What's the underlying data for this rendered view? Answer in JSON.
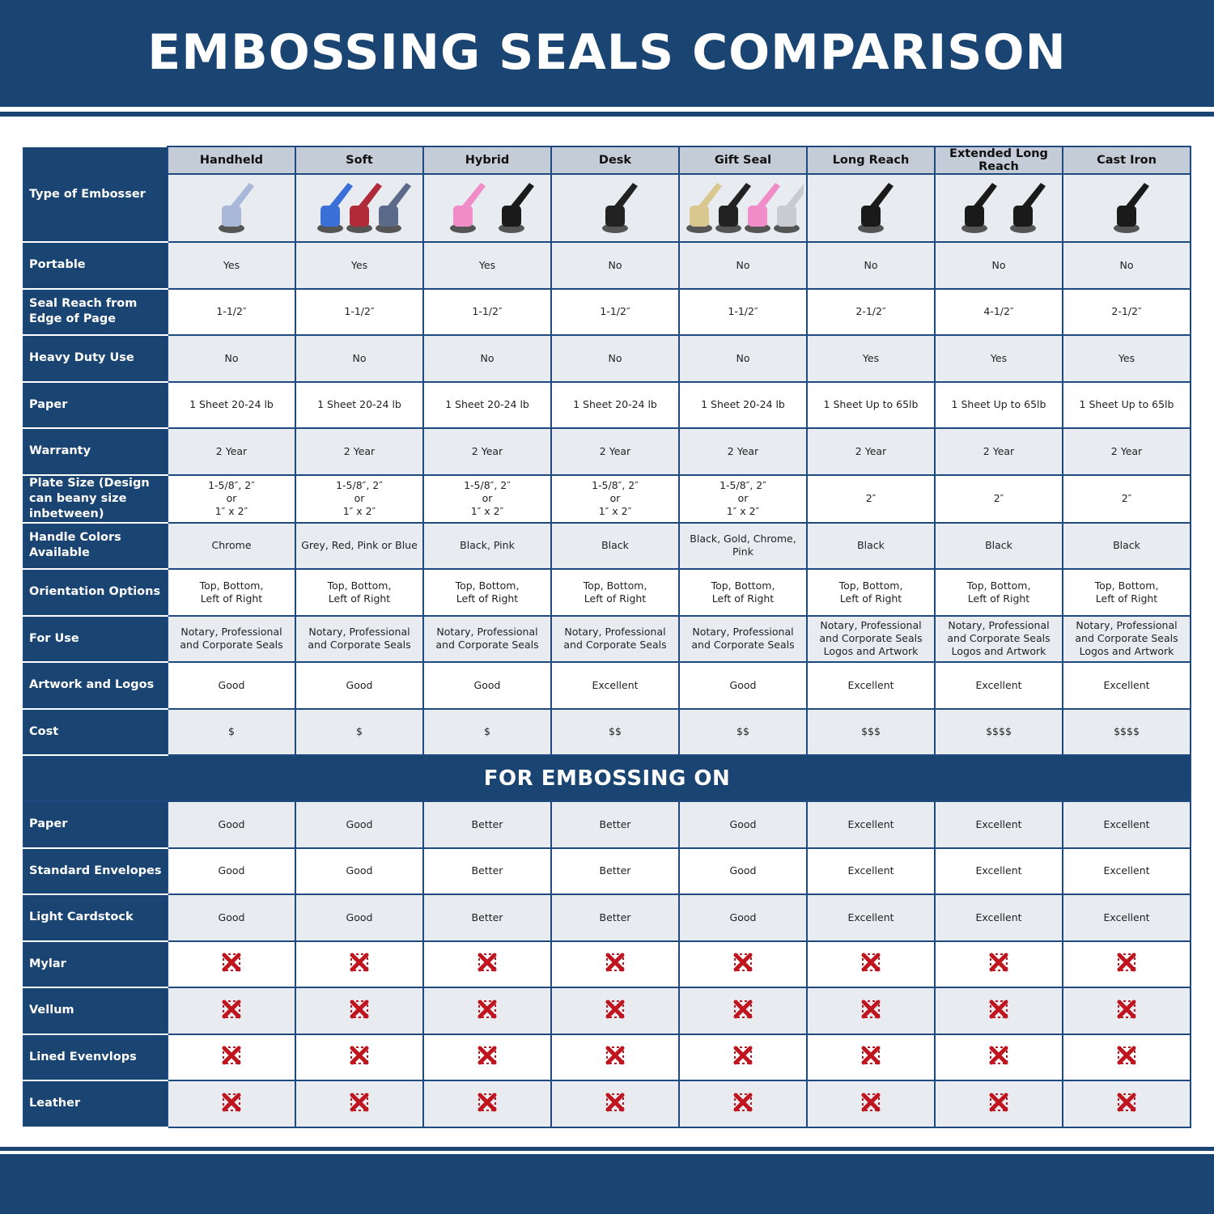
{
  "title": "EMBOSSING SEALS COMPARISON",
  "colors": {
    "brand": "#1a4472",
    "header_cell": "#c3ccd7",
    "alt_row": "#e8ecf0",
    "cross": "#c0141e"
  },
  "type_label": "Type of Embosser",
  "columns": [
    {
      "name": "Handheld",
      "image_colors": [
        "#a9b8d8"
      ]
    },
    {
      "name": "Soft",
      "image_colors": [
        "#3a6fd8",
        "#b02a3a",
        "#5a6a88"
      ]
    },
    {
      "name": "Hybrid",
      "image_colors": [
        "#f08cc8",
        "#1a1a1a"
      ]
    },
    {
      "name": "Desk",
      "image_colors": [
        "#222222"
      ]
    },
    {
      "name": "Gift Seal",
      "image_colors": [
        "#d8c890",
        "#222222",
        "#f08cc8",
        "#c8ccd0"
      ]
    },
    {
      "name": "Long Reach",
      "image_colors": [
        "#1a1a1a"
      ]
    },
    {
      "name": "Extended Long Reach",
      "image_colors": [
        "#1a1a1a",
        "#1a1a1a"
      ]
    },
    {
      "name": "Cast Iron",
      "image_colors": [
        "#1a1a1a"
      ]
    }
  ],
  "rows": [
    {
      "label": "Portable",
      "values": [
        "Yes",
        "Yes",
        "Yes",
        "No",
        "No",
        "No",
        "No",
        "No"
      ]
    },
    {
      "label": "Seal Reach from Edge of Page",
      "values": [
        "1-1/2″",
        "1-1/2″",
        "1-1/2″",
        "1-1/2″",
        "1-1/2″",
        "2-1/2″",
        "4-1/2″",
        "2-1/2″"
      ]
    },
    {
      "label": "Heavy Duty Use",
      "values": [
        "No",
        "No",
        "No",
        "No",
        "No",
        "Yes",
        "Yes",
        "Yes"
      ]
    },
    {
      "label": "Paper",
      "values": [
        "1 Sheet 20-24 lb",
        "1 Sheet 20-24 lb",
        "1 Sheet 20-24 lb",
        "1 Sheet 20-24 lb",
        "1 Sheet 20-24 lb",
        "1 Sheet Up to 65lb",
        "1 Sheet Up to 65lb",
        "1 Sheet Up to 65lb"
      ]
    },
    {
      "label": "Warranty",
      "values": [
        "2 Year",
        "2 Year",
        "2 Year",
        "2 Year",
        "2 Year",
        "2 Year",
        "2 Year",
        "2 Year"
      ]
    },
    {
      "label": "Plate Size (Design can beany size inbetween)",
      "values": [
        "1-5/8″, 2″\nor\n1″ x 2″",
        "1-5/8″, 2″\nor\n1″ x 2″",
        "1-5/8″, 2″\nor\n1″ x 2″",
        "1-5/8″, 2″\nor\n1″ x 2″",
        "1-5/8″, 2″\nor\n1″ x 2″",
        "2″",
        "2″",
        "2″"
      ]
    },
    {
      "label": "Handle Colors Available",
      "values": [
        "Chrome",
        "Grey, Red, Pink or Blue",
        "Black, Pink",
        "Black",
        "Black, Gold, Chrome, Pink",
        "Black",
        "Black",
        "Black"
      ]
    },
    {
      "label": "Orientation Options",
      "values": [
        "Top, Bottom,\nLeft of Right",
        "Top, Bottom,\nLeft of Right",
        "Top, Bottom,\nLeft of Right",
        "Top, Bottom,\nLeft of Right",
        "Top, Bottom,\nLeft of Right",
        "Top, Bottom,\nLeft of Right",
        "Top, Bottom,\nLeft of Right",
        "Top, Bottom,\nLeft of Right"
      ]
    },
    {
      "label": "For Use",
      "values": [
        "Notary, Professional\nand Corporate Seals",
        "Notary, Professional\nand Corporate Seals",
        "Notary, Professional\nand Corporate Seals",
        "Notary, Professional\nand Corporate Seals",
        "Notary, Professional\nand Corporate Seals",
        "Notary, Professional\nand Corporate Seals\nLogos and Artwork",
        "Notary, Professional\nand Corporate Seals\nLogos and Artwork",
        "Notary, Professional\nand Corporate Seals\nLogos and Artwork"
      ]
    },
    {
      "label": "Artwork and Logos",
      "values": [
        "Good",
        "Good",
        "Good",
        "Excellent",
        "Good",
        "Excellent",
        "Excellent",
        "Excellent"
      ]
    },
    {
      "label": "Cost",
      "values": [
        "$",
        "$",
        "$",
        "$$",
        "$$",
        "$$$",
        "$$$$",
        "$$$$"
      ]
    }
  ],
  "section_title": "FOR EMBOSSING ON",
  "section_rows": [
    {
      "label": "Paper",
      "values": [
        "Good",
        "Good",
        "Better",
        "Better",
        "Good",
        "Excellent",
        "Excellent",
        "Excellent"
      ]
    },
    {
      "label": "Standard Envelopes",
      "values": [
        "Good",
        "Good",
        "Better",
        "Better",
        "Good",
        "Excellent",
        "Excellent",
        "Excellent"
      ]
    },
    {
      "label": "Light Cardstock",
      "values": [
        "Good",
        "Good",
        "Better",
        "Better",
        "Good",
        "Excellent",
        "Excellent",
        "Excellent"
      ]
    },
    {
      "label": "Mylar",
      "values": [
        "x-icon",
        "x-icon",
        "x-icon",
        "x-icon",
        "x-icon",
        "x-icon",
        "x-icon",
        "x-icon"
      ]
    },
    {
      "label": "Vellum",
      "values": [
        "x-icon",
        "x-icon",
        "x-icon",
        "x-icon",
        "x-icon",
        "x-icon",
        "x-icon",
        "x-icon"
      ]
    },
    {
      "label": "Lined Evenvlops",
      "values": [
        "x-icon",
        "x-icon",
        "x-icon",
        "x-icon",
        "x-icon",
        "x-icon",
        "x-icon",
        "x-icon"
      ]
    },
    {
      "label": "Leather",
      "values": [
        "x-icon",
        "x-icon",
        "x-icon",
        "x-icon",
        "x-icon",
        "x-icon",
        "x-icon",
        "x-icon"
      ]
    }
  ]
}
